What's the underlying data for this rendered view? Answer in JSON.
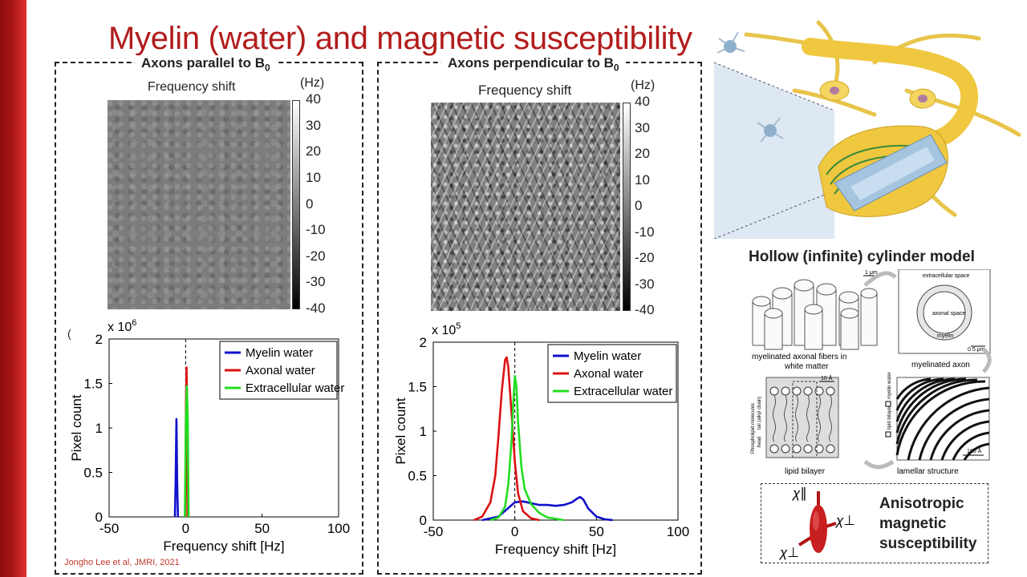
{
  "slide": {
    "title": "Myelin (water) and magnetic susceptibility",
    "citation": "Jongho Lee et al, JMRI, 2021",
    "accent_color": "#b21c1c"
  },
  "left_panel": {
    "heading": "Axons parallel to B",
    "heading_sub": "0",
    "map_title": "Frequency shift",
    "colorbar_unit": "(Hz)",
    "colorbar_ticks": [
      "40",
      "30",
      "20",
      "10",
      "0",
      "-10",
      "-20",
      "-30",
      "-40"
    ],
    "stray_mark": "("
  },
  "right_panel": {
    "heading": "Axons perpendicular to B",
    "heading_sub": "0",
    "map_title": "Frequency shift",
    "colorbar_unit": "(Hz)",
    "colorbar_ticks": [
      "40",
      "30",
      "20",
      "10",
      "0",
      "-10",
      "-20",
      "-30",
      "-40"
    ]
  },
  "chart_data": [
    {
      "type": "line",
      "title": "",
      "xlabel": "Frequency shift [Hz]",
      "ylabel": "Pixel count",
      "y_exponent_label": "x 10",
      "y_exponent": "6",
      "xlim": [
        -50,
        100
      ],
      "ylim": [
        0,
        2
      ],
      "xticks": [
        "-50",
        "0",
        "50",
        "100"
      ],
      "yticks": [
        "0",
        "0.5",
        "1",
        "1.5",
        "2"
      ],
      "legend_position": "top-right",
      "series": [
        {
          "name": "Myelin water",
          "color": "#1010cc",
          "x": [
            -7,
            -6.5,
            -6,
            -5.5,
            -5
          ],
          "y": [
            0,
            0.4,
            1.1,
            0.4,
            0
          ]
        },
        {
          "name": "Axonal water",
          "color": "#dd1111",
          "x": [
            -0.2,
            0.2,
            0.6,
            1.0,
            1.4
          ],
          "y": [
            0,
            1.2,
            1.68,
            1.2,
            0
          ]
        },
        {
          "name": "Extracellular water",
          "color": "#22dd22",
          "x": [
            -0.5,
            0.2,
            0.8,
            1.4,
            2.0
          ],
          "y": [
            0,
            1.1,
            1.47,
            1.1,
            0
          ]
        }
      ]
    },
    {
      "type": "line",
      "title": "",
      "xlabel": "Frequency shift [Hz]",
      "ylabel": "Pixel count",
      "y_exponent_label": "x 10",
      "y_exponent": "5",
      "xlim": [
        -50,
        100
      ],
      "ylim": [
        0,
        2
      ],
      "xticks": [
        "-50",
        "0",
        "50",
        "100"
      ],
      "yticks": [
        "0",
        "0.5",
        "1",
        "1.5",
        "2"
      ],
      "legend_position": "top-right",
      "series": [
        {
          "name": "Myelin water",
          "color": "#1010cc",
          "x": [
            -20,
            -10,
            -5,
            0,
            5,
            10,
            15,
            20,
            25,
            30,
            35,
            38,
            40,
            42,
            45,
            50,
            55,
            60
          ],
          "y": [
            0,
            0.04,
            0.12,
            0.2,
            0.21,
            0.19,
            0.17,
            0.17,
            0.16,
            0.17,
            0.2,
            0.24,
            0.26,
            0.23,
            0.13,
            0.04,
            0.01,
            0
          ]
        },
        {
          "name": "Axonal water",
          "color": "#dd1111",
          "x": [
            -25,
            -20,
            -15,
            -12,
            -10,
            -8,
            -6,
            -5,
            -4,
            -2,
            0,
            2,
            5,
            10,
            15
          ],
          "y": [
            0,
            0.04,
            0.2,
            0.5,
            0.95,
            1.45,
            1.8,
            1.83,
            1.72,
            1.2,
            0.65,
            0.3,
            0.1,
            0.02,
            0
          ]
        },
        {
          "name": "Extracellular water",
          "color": "#22dd22",
          "x": [
            -15,
            -10,
            -6,
            -4,
            -2,
            -1,
            0,
            1,
            2,
            4,
            6,
            10,
            15,
            20,
            30
          ],
          "y": [
            0,
            0.03,
            0.15,
            0.4,
            0.9,
            1.3,
            1.62,
            1.5,
            1.1,
            0.6,
            0.35,
            0.18,
            0.08,
            0.03,
            0
          ]
        }
      ]
    }
  ],
  "neuron_illustration": {
    "icon": "neuron-myelin-illustration"
  },
  "model": {
    "title": "Hollow (infinite) cylinder model",
    "scale_1um": "1 μm",
    "scale_05um": "0.5 μm",
    "label_extracellular": "extracellular space",
    "label_axonal_space": "axonal space",
    "label_myelin": "myelin",
    "caption_fibers_1": "myelinated axonal fibers in",
    "caption_fibers_2": "white matter",
    "caption_axon": "myelinated axon",
    "caption_bilayer": "lipid bilayer",
    "caption_lamellar": "lamellar structure",
    "scale_10A": "10 Å",
    "scale_100A": "100 Å",
    "label_phospholipid": "Phospholipid molecules",
    "label_tail": "tail (alkyl chain)",
    "label_head": "head",
    "legend_lipid_bilayer": "lipid bilayer",
    "legend_myelin_water": "myelin water"
  },
  "anisotropy": {
    "text_lines": [
      "Anisotropic",
      "magnetic",
      "susceptibility"
    ],
    "chi_parallel": "χ∥",
    "chi_perp_right": "χ⊥",
    "chi_perp_left": "χ⊥",
    "icon": "ellipsoid-susceptibility-icon"
  }
}
